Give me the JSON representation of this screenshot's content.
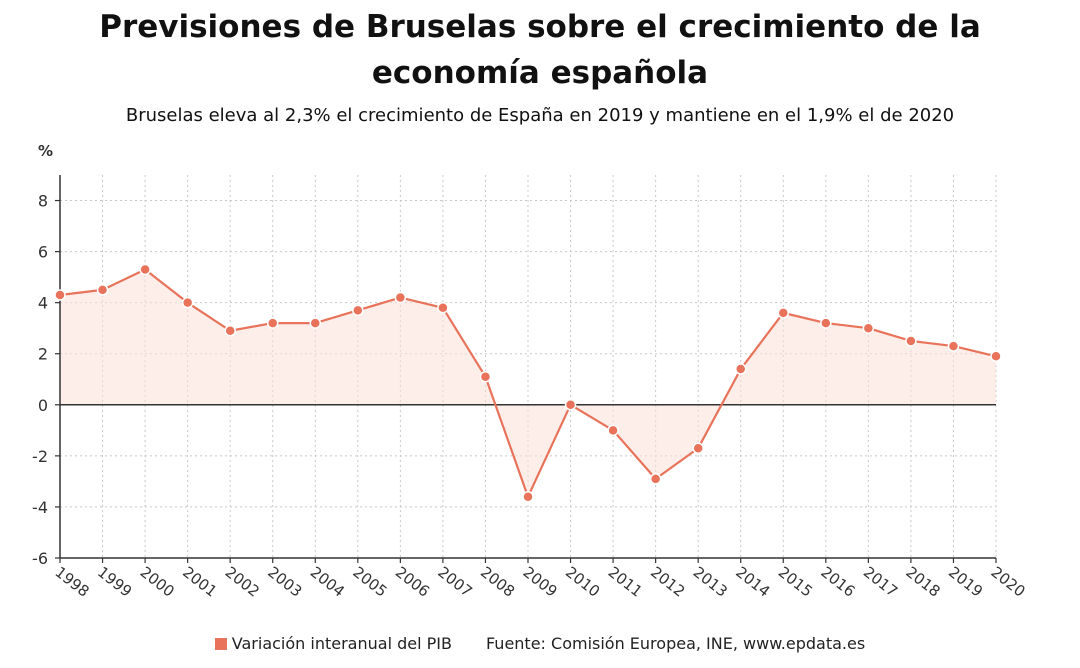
{
  "chart_data": {
    "type": "line",
    "title_line1": "Previsiones de Bruselas sobre el crecimiento de la",
    "title_line2": "economía española",
    "subtitle": "Bruselas eleva al 2,3% el crecimiento de España en 2019 y mantiene en el 1,9% el de 2020",
    "ylabel": "%",
    "ylim": [
      -6,
      9
    ],
    "yticks": [
      "8",
      "6",
      "4",
      "2",
      "0",
      "-2",
      "-4",
      "-6"
    ],
    "ytick_values": [
      8,
      6,
      4,
      2,
      0,
      -2,
      -4,
      -6
    ],
    "categories": [
      "1998",
      "1999",
      "2000",
      "2001",
      "2002",
      "2003",
      "2004",
      "2005",
      "2006",
      "2007",
      "2008",
      "2009",
      "2010",
      "2011",
      "2012",
      "2013",
      "2014",
      "2015",
      "2016",
      "2017",
      "2018",
      "2019",
      "2020"
    ],
    "series": [
      {
        "name": "Variación interanual del PIB",
        "values": [
          4.3,
          4.5,
          5.3,
          4.0,
          2.9,
          3.2,
          3.2,
          3.7,
          4.2,
          3.8,
          1.1,
          -3.6,
          0.0,
          -1.0,
          -2.9,
          -1.7,
          1.4,
          3.6,
          3.2,
          3.0,
          2.5,
          2.3,
          1.9
        ]
      }
    ],
    "grid": true,
    "legend_position": "bottom",
    "color": "#e8735a"
  },
  "footer": {
    "legend_label": "Variación interanual del PIB",
    "source": "Fuente: Comisión Europea, INE, www.epdata.es"
  }
}
